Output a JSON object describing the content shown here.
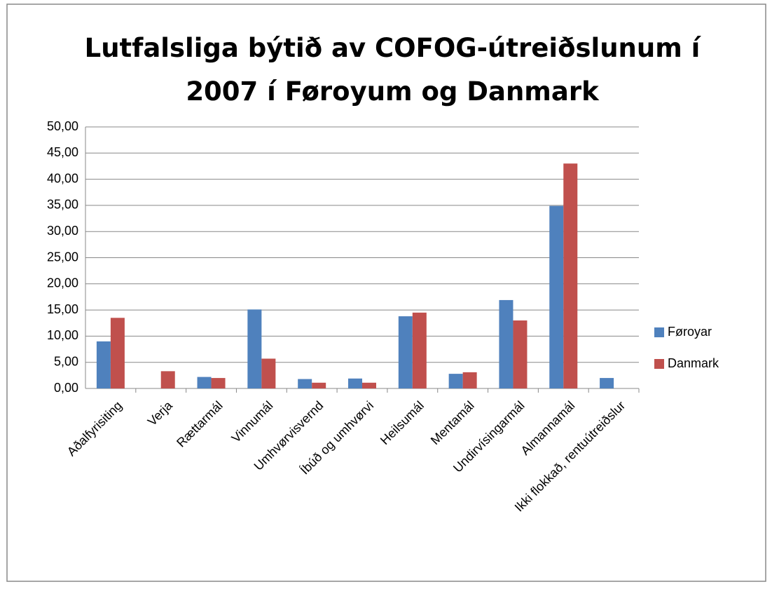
{
  "chart_data": {
    "type": "bar",
    "title": "Lutfalsliga býtið av COFOG-útreiðslunum í 2007 í Føroyum og Danmark",
    "categories": [
      "Aðalfyrisiting",
      "Verja",
      "Rættarmál",
      "Vinnumál",
      "Umhvørvisvernd",
      "Íbúð og umhvørvi",
      "Heilsumál",
      "Mentamál",
      "Undirvísingarmál",
      "Almannamál",
      "Ikki flokkað, rentuútreiðslur"
    ],
    "series": [
      {
        "name": "Føroyar",
        "color": "#4f81bd",
        "values": [
          9.0,
          0,
          2.2,
          15.1,
          1.8,
          1.9,
          13.8,
          2.8,
          16.9,
          34.9,
          2.0
        ]
      },
      {
        "name": "Danmark",
        "color": "#c0504d",
        "values": [
          13.5,
          3.3,
          2.0,
          5.7,
          1.1,
          1.1,
          14.5,
          3.1,
          13.0,
          43.0,
          0
        ]
      }
    ],
    "ylim": [
      0,
      50
    ],
    "yticks": [
      {
        "value": 0,
        "label": "0,00"
      },
      {
        "value": 5,
        "label": "5,00"
      },
      {
        "value": 10,
        "label": "10,00"
      },
      {
        "value": 15,
        "label": "15,00"
      },
      {
        "value": 20,
        "label": "20,00"
      },
      {
        "value": 25,
        "label": "25,00"
      },
      {
        "value": 30,
        "label": "30,00"
      },
      {
        "value": 35,
        "label": "35,00"
      },
      {
        "value": 40,
        "label": "40,00"
      },
      {
        "value": 45,
        "label": "45,00"
      },
      {
        "value": 50,
        "label": "50,00"
      }
    ],
    "grid": true,
    "legend": "right"
  }
}
